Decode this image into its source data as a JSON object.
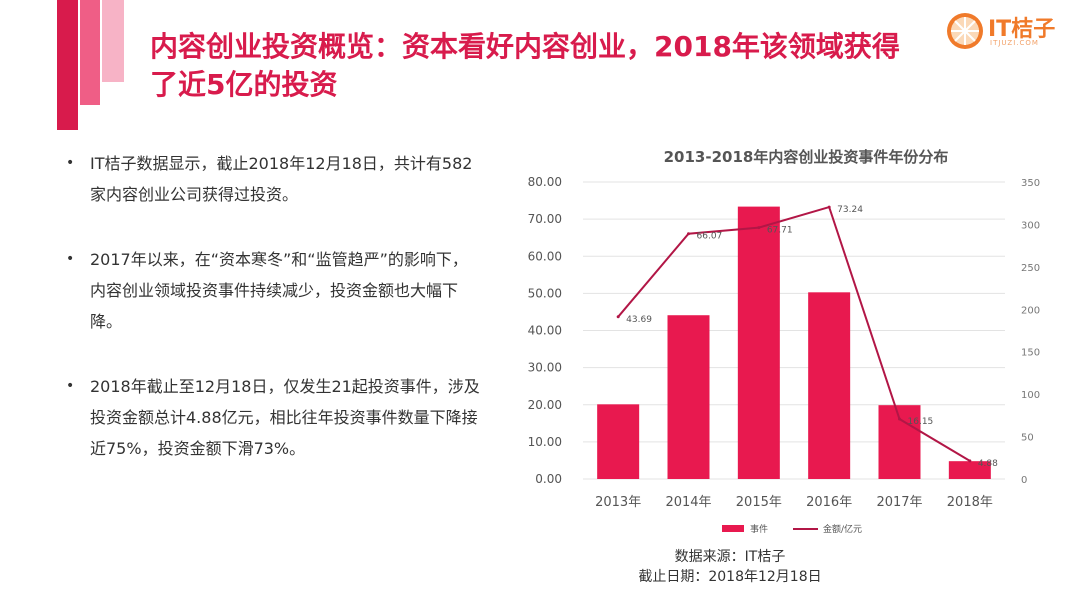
{
  "title": "内容创业投资概览：资本看好内容创业，2018年该领域获得了近5亿的投资",
  "logo": {
    "name": "IT桔子",
    "subtitle": "ITJUZI.COM"
  },
  "bullets": [
    "IT桔子数据显示，截止2018年12月18日，共计有582家内容创业公司获得过投资。",
    "2017年以来，在“资本寒冬”和“监管趋严”的影响下，内容创业领域投资事件持续减少，投资金额也大幅下降。",
    "2018年截止至12月18日，仅发生21起投资事件，涉及投资金额总计4.88亿元，相比往年投资事件数量下降接近75%，投资金额下滑73%。"
  ],
  "chart_data": {
    "type": "bar",
    "title": "2013-2018年内容创业投资事件年份分布",
    "categories": [
      "2013年",
      "2014年",
      "2015年",
      "2016年",
      "2017年",
      "2018年"
    ],
    "series": [
      {
        "name": "事件",
        "type": "bar",
        "axis": "right",
        "values": [
          88,
          193,
          321,
          220,
          87,
          21
        ]
      },
      {
        "name": "金额/亿元",
        "type": "line",
        "axis": "left",
        "values": [
          43.69,
          66.07,
          67.71,
          73.24,
          16.15,
          4.88
        ],
        "labels": [
          "43.69",
          "66.07",
          "67.71",
          "73.24",
          "16.15",
          "4.88"
        ]
      }
    ],
    "left_axis": {
      "min": 0,
      "max": 80,
      "step": 10,
      "ticks": [
        "0.00",
        "10.00",
        "20.00",
        "30.00",
        "40.00",
        "50.00",
        "60.00",
        "70.00",
        "80.00"
      ]
    },
    "right_axis": {
      "min": 0,
      "max": 350,
      "step": 50,
      "ticks": [
        "0",
        "50",
        "100",
        "150",
        "200",
        "250",
        "300",
        "350"
      ]
    },
    "grid": true,
    "legend": "bottom",
    "colors": {
      "bar": "#e8194f",
      "line": "#b21646"
    }
  },
  "source": {
    "line1": "数据来源：IT桔子",
    "line2": "截止日期：2018年12月18日"
  }
}
